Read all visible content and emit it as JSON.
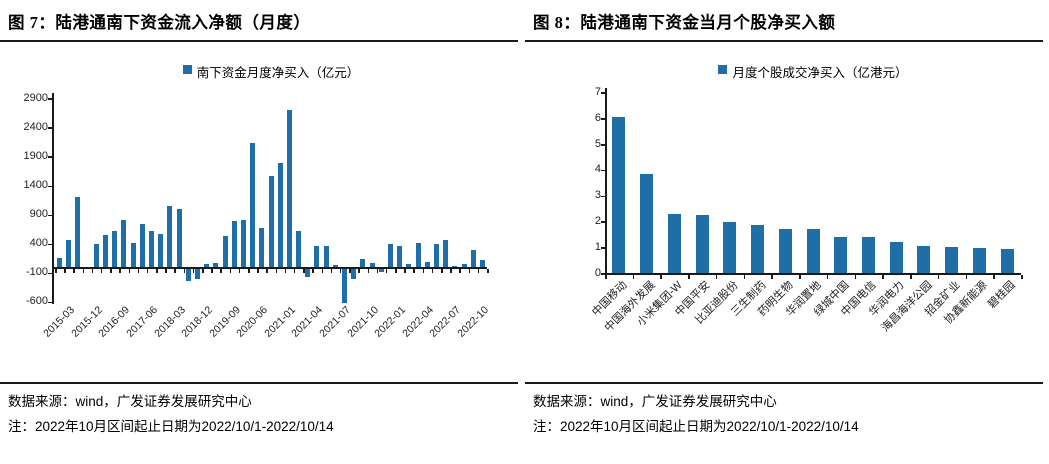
{
  "colors": {
    "bar": "#1F6EA7",
    "axis": "#1a1a1a",
    "text": "#000000"
  },
  "panels": [
    {
      "source": "数据来源：wind，广发证券发展研究中心",
      "note": "注：2022年10月区间起止日期为2022/10/1-2022/10/14"
    },
    {
      "source": "数据来源：wind，广发证券发展研究中心",
      "note": "注：2022年10月区间起止日期为2022/10/1-2022/10/14"
    }
  ],
  "chart_data": [
    {
      "type": "bar",
      "title": "图 7：陆港通南下资金流入净额（月度）",
      "legend": [
        "南下资金月度净买入（亿元）"
      ],
      "legend_position": "top",
      "grid": false,
      "ylim": [
        -600,
        2900
      ],
      "yticks": [
        2900,
        2400,
        1900,
        1400,
        900,
        400,
        -100,
        -600
      ],
      "categories": [
        "2014-12",
        "2015-03",
        "2015-06",
        "2015-09",
        "2015-12",
        "2016-03",
        "2016-06",
        "2016-09",
        "2016-12",
        "2017-03",
        "2017-06",
        "2017-09",
        "2017-12",
        "2018-03",
        "2018-06",
        "2018-09",
        "2018-12",
        "2019-03",
        "2019-06",
        "2019-09",
        "2019-12",
        "2020-03",
        "2020-06",
        "2020-09",
        "2020-12",
        "2021-01",
        "2021-02",
        "2021-03",
        "2021-04",
        "2021-05",
        "2021-06",
        "2021-07",
        "2021-08",
        "2021-09",
        "2021-10",
        "2021-11",
        "2021-12",
        "2022-01",
        "2022-02",
        "2022-03",
        "2022-04",
        "2022-05",
        "2022-06",
        "2022-07",
        "2022-08",
        "2022-09",
        "2022-10"
      ],
      "values": [
        150,
        465,
        1200,
        0,
        395,
        550,
        625,
        800,
        405,
        745,
        615,
        565,
        1040,
        990,
        -210,
        -170,
        60,
        70,
        540,
        795,
        815,
        2130,
        670,
        1570,
        1790,
        2690,
        625,
        -130,
        355,
        355,
        40,
        -580,
        -180,
        135,
        75,
        -50,
        395,
        355,
        50,
        410,
        80,
        390,
        460,
        15,
        55,
        300,
        120
      ],
      "xtick_labels_shown": [
        "2015-03",
        "2015-12",
        "2016-09",
        "2017-06",
        "2018-03",
        "2018-12",
        "2019-09",
        "2020-06",
        "2021-01",
        "2021-04",
        "2021-07",
        "2021-10",
        "2022-01",
        "2022-04",
        "2022-07",
        "2022-10"
      ]
    },
    {
      "type": "bar",
      "title": "图 8：陆港通南下资金当月个股净买入额",
      "legend": [
        "月度个股成交净买入（亿港元）"
      ],
      "legend_position": "top",
      "grid": false,
      "ylim": [
        0,
        7
      ],
      "yticks": [
        7,
        6,
        5,
        4,
        3,
        2,
        1,
        0
      ],
      "categories": [
        "中国移动",
        "中国海外发展",
        "小米集团-W",
        "中国平安",
        "比亚迪股份",
        "三生制药",
        "药明生物",
        "华润置地",
        "绿城中国",
        "中国电信",
        "华润电力",
        "海昌海洋公园",
        "招金矿业",
        "协鑫新能源",
        "碧桂园"
      ],
      "values": [
        6.05,
        3.85,
        2.27,
        2.25,
        1.98,
        1.87,
        1.69,
        1.69,
        1.39,
        1.39,
        1.21,
        1.03,
        1.01,
        0.96,
        0.93
      ],
      "xtick_labels_shown": [
        "中国移动",
        "中国海外发展",
        "小米集团-W",
        "中国平安",
        "比亚迪股份",
        "三生制药",
        "药明生物",
        "华润置地",
        "绿城中国",
        "中国电信",
        "华润电力",
        "海昌海洋公园",
        "招金矿业",
        "协鑫新能源",
        "碧桂园"
      ]
    }
  ]
}
